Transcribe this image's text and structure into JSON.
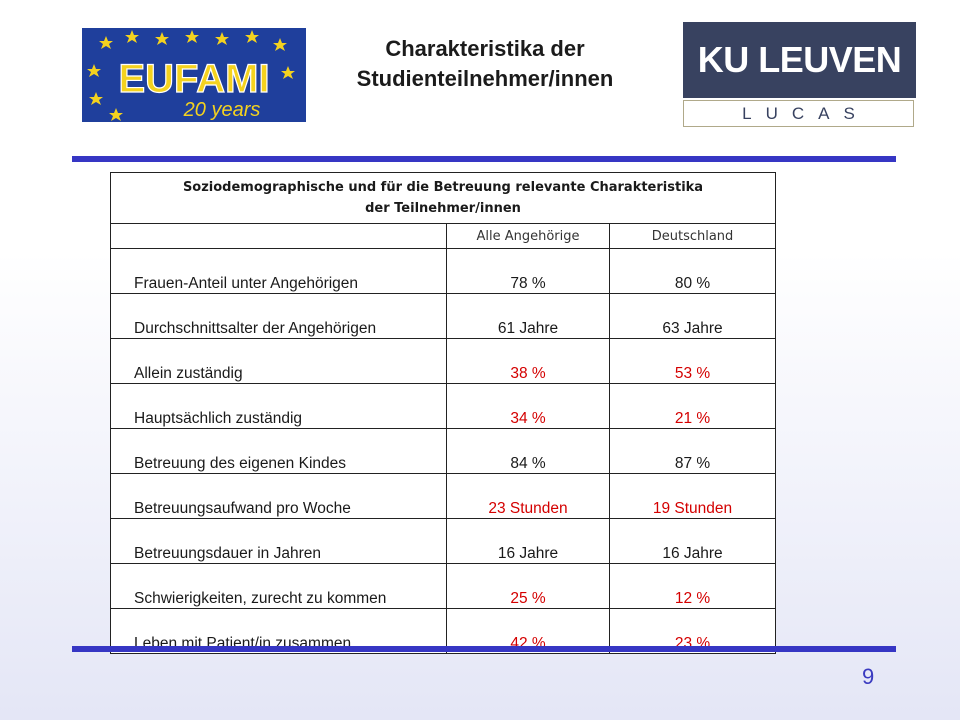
{
  "logos": {
    "eufami_text": "EUFAMI",
    "eufami_sub": "20 years",
    "ku_text": "KU LEUVEN",
    "ku_sub": "LUCAS"
  },
  "title": {
    "line1": "Charakteristika der",
    "line2": "Studienteilnehmer/innen"
  },
  "table": {
    "header_line1": "Soziodemographische und für die Betreuung relevante Charakteristika",
    "header_line2": "der Teilnehmer/innen",
    "columns": [
      "",
      "Alle Angehörige",
      "Deutschland"
    ],
    "rows": [
      {
        "label": "Frauen-Anteil  unter Angehörigen",
        "all": "78 %",
        "de": "80 %",
        "highlight": false
      },
      {
        "label": "Durchschnittsalter der Angehörigen",
        "all": "61 Jahre",
        "de": "63 Jahre",
        "highlight": false
      },
      {
        "label": "Allein zuständig",
        "all": "38 %",
        "de": "53 %",
        "highlight": true
      },
      {
        "label": "Hauptsächlich zuständig",
        "all": "34 %",
        "de": "21 %",
        "highlight": true
      },
      {
        "label": "Betreuung des eigenen Kindes",
        "all": "84 %",
        "de": "87 %",
        "highlight": false
      },
      {
        "label": "Betreuungsaufwand pro Woche",
        "all": "23 Stunden",
        "de": "19 Stunden",
        "highlight": true
      },
      {
        "label": "Betreuungsdauer in Jahren",
        "all": "16 Jahre",
        "de": "16 Jahre",
        "highlight": false
      },
      {
        "label": "Schwierigkeiten, zurecht zu kommen",
        "all": "25 %",
        "de": "12 %",
        "highlight": true
      },
      {
        "label": "Leben mit Patient/in zusammen",
        "all": "42 %",
        "de": "23 %",
        "highlight": true
      }
    ]
  },
  "colors": {
    "accent": "#3636c4",
    "highlight": "#d40000"
  },
  "page_number": "9"
}
